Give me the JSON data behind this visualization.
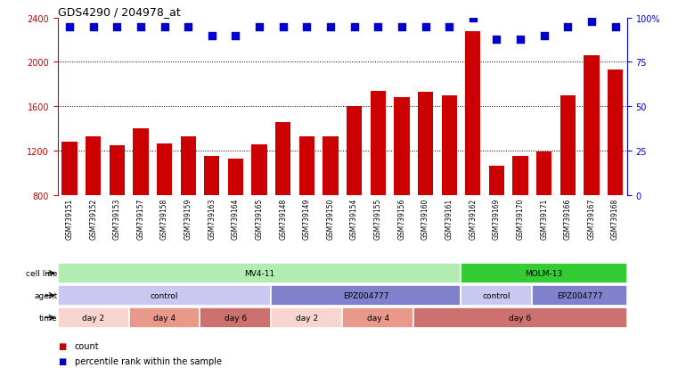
{
  "title": "GDS4290 / 204978_at",
  "samples": [
    "GSM739151",
    "GSM739152",
    "GSM739153",
    "GSM739157",
    "GSM739158",
    "GSM739159",
    "GSM739163",
    "GSM739164",
    "GSM739165",
    "GSM739148",
    "GSM739149",
    "GSM739150",
    "GSM739154",
    "GSM739155",
    "GSM739156",
    "GSM739160",
    "GSM739161",
    "GSM739162",
    "GSM739169",
    "GSM739170",
    "GSM739171",
    "GSM739166",
    "GSM739167",
    "GSM739168"
  ],
  "counts": [
    1280,
    1330,
    1245,
    1400,
    1265,
    1330,
    1150,
    1130,
    1260,
    1460,
    1330,
    1330,
    1600,
    1740,
    1680,
    1730,
    1700,
    2280,
    1060,
    1150,
    1190,
    1700,
    2060,
    1930
  ],
  "percentile_ranks": [
    95,
    95,
    95,
    95,
    95,
    95,
    90,
    90,
    95,
    95,
    95,
    95,
    95,
    95,
    95,
    95,
    95,
    100,
    88,
    88,
    90,
    95,
    98,
    95
  ],
  "bar_color": "#cc0000",
  "dot_color": "#0000cc",
  "ylim_left": [
    800,
    2400
  ],
  "ylim_right": [
    0,
    100
  ],
  "yticks_left": [
    800,
    1200,
    1600,
    2000,
    2400
  ],
  "yticks_right": [
    0,
    25,
    50,
    75,
    100
  ],
  "ytick_labels_right": [
    "0",
    "25",
    "50",
    "75",
    "100%"
  ],
  "grid_values": [
    1200,
    1600,
    2000
  ],
  "cell_line_colors": {
    "MV4-11": "#b3ecb3",
    "MOLM-13": "#33cc33"
  },
  "cell_line_segments": [
    {
      "label": "MV4-11",
      "start": 0,
      "end": 17
    },
    {
      "label": "MOLM-13",
      "start": 17,
      "end": 24
    }
  ],
  "agent_row": [
    {
      "label": "control",
      "start": 0,
      "end": 9,
      "color": "#c8c8f0"
    },
    {
      "label": "EPZ004777",
      "start": 9,
      "end": 17,
      "color": "#8080cc"
    },
    {
      "label": "control",
      "start": 17,
      "end": 20,
      "color": "#c8c8f0"
    },
    {
      "label": "EPZ004777",
      "start": 20,
      "end": 24,
      "color": "#8080cc"
    }
  ],
  "time_row": [
    {
      "label": "day 2",
      "start": 0,
      "end": 3,
      "color": "#f9d5d0"
    },
    {
      "label": "day 4",
      "start": 3,
      "end": 6,
      "color": "#e8998a"
    },
    {
      "label": "day 6",
      "start": 6,
      "end": 9,
      "color": "#cc7070"
    },
    {
      "label": "day 2",
      "start": 9,
      "end": 12,
      "color": "#f9d5d0"
    },
    {
      "label": "day 4",
      "start": 12,
      "end": 15,
      "color": "#e8998a"
    },
    {
      "label": "day 6",
      "start": 15,
      "end": 24,
      "color": "#cc7070"
    }
  ],
  "row_labels": [
    "cell line",
    "agent",
    "time"
  ],
  "bar_width": 0.65,
  "dot_size": 30,
  "background_color": "#ffffff",
  "axis_color_left": "#cc0000",
  "axis_color_right": "#0000cc",
  "plot_bg": "#ffffff",
  "tick_label_fontsize": 5.5,
  "title_fontsize": 9
}
